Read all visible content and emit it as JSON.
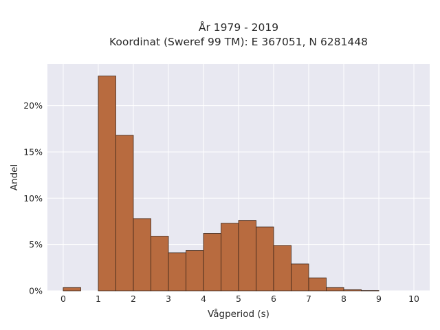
{
  "chart_data": {
    "type": "bar",
    "title_line1": "År 1979 - 2019",
    "title_line2": "Koordinat (Sweref 99 TM): E 367051, N 6281448",
    "xlabel": "Vågperiod (s)",
    "ylabel": "Andel",
    "bin_width": 0.5,
    "bins": [
      {
        "start": 0.0,
        "value": 0.35
      },
      {
        "start": 0.5,
        "value": 0.0
      },
      {
        "start": 1.0,
        "value": 23.2
      },
      {
        "start": 1.5,
        "value": 16.8
      },
      {
        "start": 2.0,
        "value": 7.8
      },
      {
        "start": 2.5,
        "value": 5.9
      },
      {
        "start": 3.0,
        "value": 4.1
      },
      {
        "start": 3.5,
        "value": 4.35
      },
      {
        "start": 4.0,
        "value": 6.2
      },
      {
        "start": 4.5,
        "value": 7.3
      },
      {
        "start": 5.0,
        "value": 7.6
      },
      {
        "start": 5.5,
        "value": 6.9
      },
      {
        "start": 6.0,
        "value": 4.9
      },
      {
        "start": 6.5,
        "value": 2.9
      },
      {
        "start": 7.0,
        "value": 1.4
      },
      {
        "start": 7.5,
        "value": 0.35
      },
      {
        "start": 8.0,
        "value": 0.12
      },
      {
        "start": 8.5,
        "value": 0.03
      }
    ],
    "xlim": [
      -0.45,
      10.45
    ],
    "ylim": [
      0,
      24.5
    ],
    "xticks": [
      0,
      1,
      2,
      3,
      4,
      5,
      6,
      7,
      8,
      9,
      10
    ],
    "yticks": [
      0,
      5,
      10,
      15,
      20
    ],
    "ytick_labels": [
      "0%",
      "5%",
      "10%",
      "15%",
      "20%"
    ],
    "grid": true,
    "colors": {
      "bar_fill": "#b86b3f",
      "bar_stroke": "#3a2418",
      "plot_bg": "#e8e8f1",
      "grid": "#ffffff"
    }
  }
}
